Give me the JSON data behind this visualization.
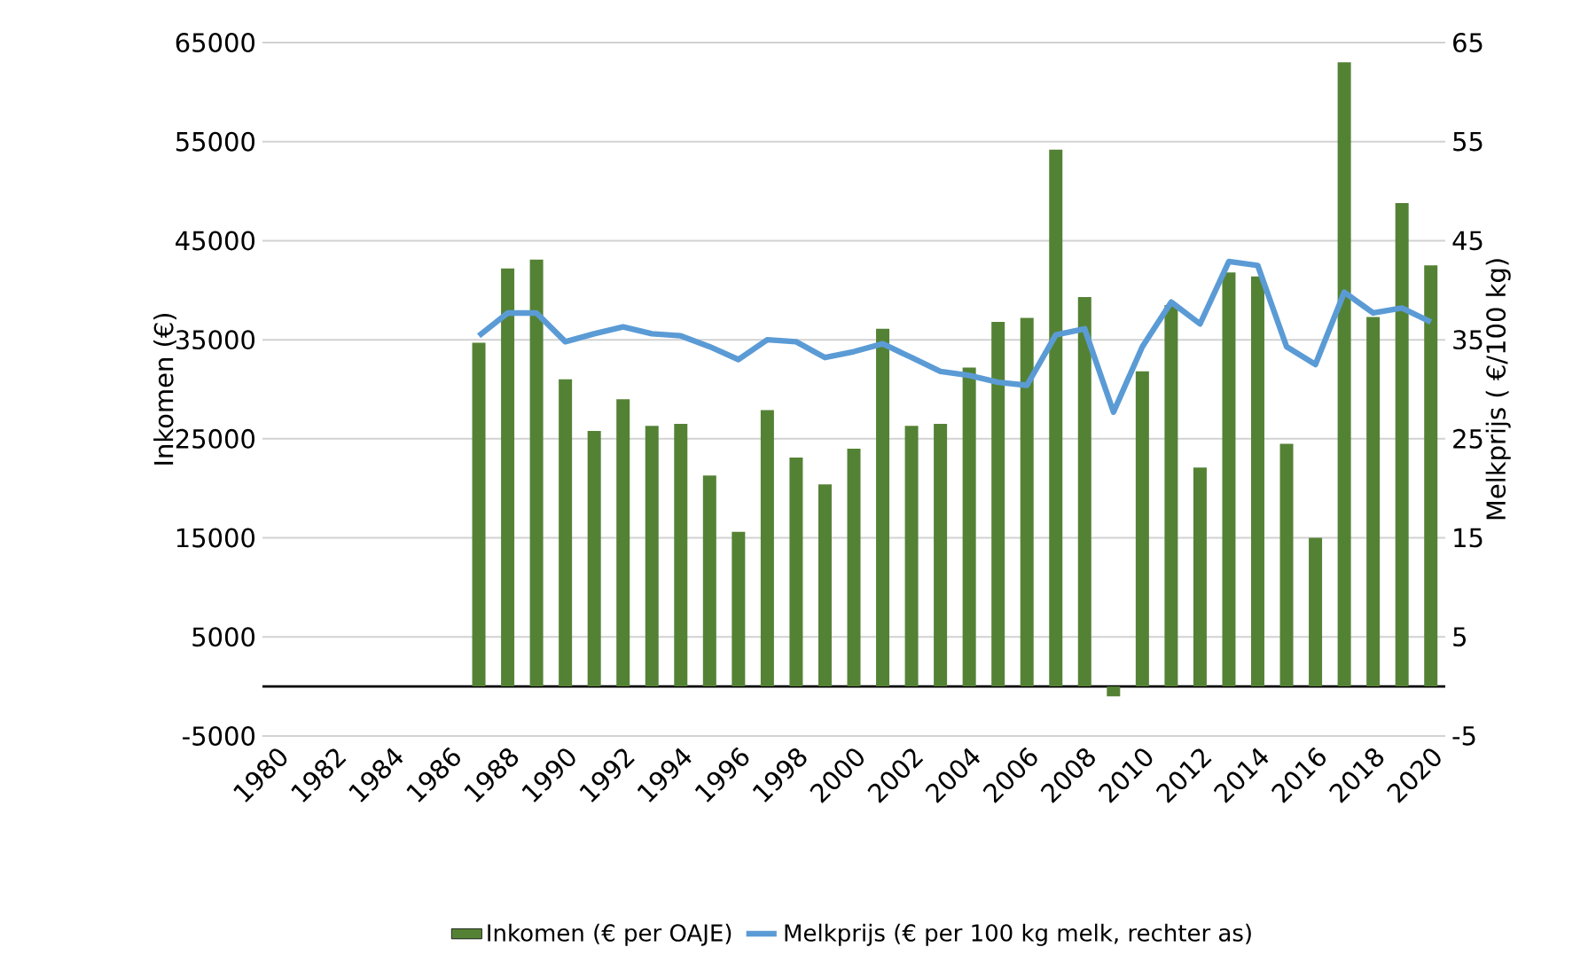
{
  "chart_data": {
    "type": "bar",
    "ylabel": "Inkomen (€)",
    "y2label": "Melkprijs ( €/100 kg)",
    "categories": [
      "1980",
      null,
      "1982",
      null,
      "1984",
      null,
      "1986",
      null,
      "1988",
      null,
      "1990",
      null,
      "1992",
      null,
      "1994",
      null,
      "1996",
      null,
      "1998",
      null,
      "2000",
      null,
      "2002",
      null,
      "2004",
      null,
      "2006",
      null,
      "2008",
      null,
      "2010",
      null,
      "2012",
      null,
      "2014",
      null,
      "2016",
      null,
      "2018",
      null,
      "2020"
    ],
    "series": [
      {
        "name": "Inkomen (€ per OAJE)",
        "color": "#548235",
        "values": [
          null,
          null,
          null,
          null,
          null,
          null,
          null,
          34700,
          42200,
          43100,
          31000,
          25800,
          29000,
          26300,
          26500,
          21300,
          15600,
          27900,
          23100,
          20400,
          24000,
          36100,
          26300,
          26500,
          32200,
          36800,
          37200,
          54200,
          39300,
          -1000,
          31800,
          38500,
          22100,
          41800,
          41400,
          24500,
          15000,
          63000,
          37300,
          48800,
          42500
        ]
      },
      {
        "name": "Melkprijs (€ per 100 kg melk, rechter as)",
        "type": "line",
        "axis": "y2",
        "color": "#5b9bd5",
        "values": [
          null,
          null,
          null,
          null,
          null,
          null,
          null,
          35.4,
          37.7,
          37.7,
          34.8,
          35.6,
          36.3,
          35.6,
          35.4,
          34.3,
          33.0,
          35.0,
          34.8,
          33.2,
          33.8,
          34.6,
          33.2,
          31.8,
          31.4,
          30.7,
          30.4,
          35.5,
          36.1,
          27.7,
          34.3,
          38.8,
          36.6,
          42.9,
          42.5,
          34.3,
          32.5,
          39.8,
          37.7,
          38.2,
          36.8
        ]
      }
    ],
    "ylim": [
      -5000,
      65000
    ],
    "yticks": [
      -5000,
      5000,
      15000,
      25000,
      35000,
      45000,
      55000,
      65000
    ],
    "y2lim": [
      -5,
      65
    ],
    "y2ticks": [
      -5,
      5,
      15,
      25,
      35,
      45,
      55,
      65
    ],
    "grid": "y",
    "legend": "bottom",
    "marker": "none"
  }
}
